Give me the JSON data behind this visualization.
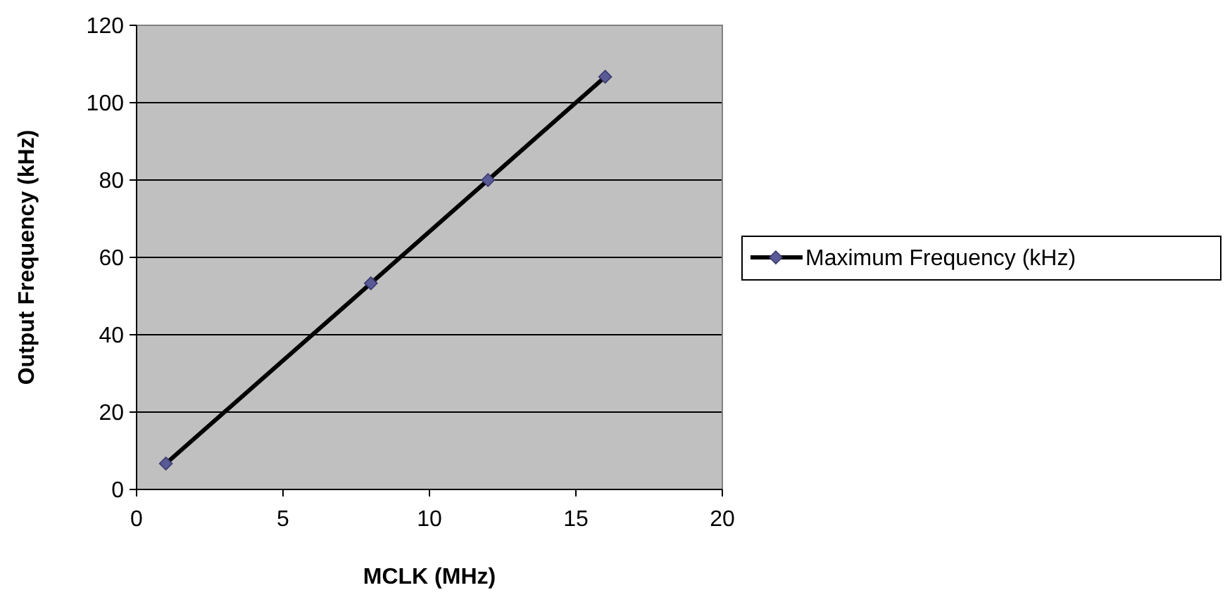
{
  "chart_data": {
    "type": "line",
    "xlabel": "MCLK (MHz)",
    "ylabel": "Output Frequency (kHz)",
    "xlim": [
      0,
      20
    ],
    "xticks": [
      0,
      5,
      10,
      15,
      20
    ],
    "ylim": [
      0,
      120
    ],
    "yticks": [
      0,
      20,
      40,
      60,
      80,
      100,
      120
    ],
    "grid": "y",
    "legend": "right",
    "marker": "diamond",
    "line_style": "solid",
    "series": [
      {
        "name": "Maximum Frequency (kHz)",
        "color": "#000000",
        "x": [
          1,
          8,
          12,
          16
        ],
        "values": [
          6.7,
          53.3,
          80,
          106.7
        ]
      }
    ]
  }
}
